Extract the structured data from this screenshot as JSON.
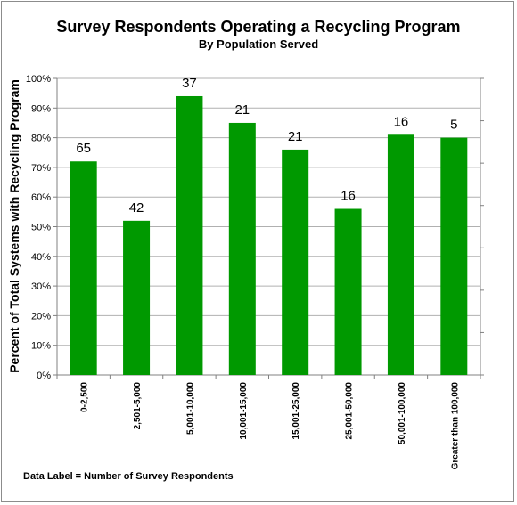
{
  "chart_data": {
    "type": "bar",
    "title": "Survey Respondents Operating a Recycling Program",
    "subtitle": "By Population Served",
    "ylabel": "Percent of Total Systems with Recycling Program",
    "xlabel": "",
    "categories": [
      "0-2,500",
      "2,501-5,000",
      "5,001-10,000",
      "10,001-15,000",
      "15,001-25,000",
      "25,001-50,000",
      "50,001-100,000",
      "Greater than 100,000"
    ],
    "values": [
      72,
      52,
      94,
      85,
      76,
      56,
      81,
      80
    ],
    "data_labels": [
      "65",
      "42",
      "37",
      "21",
      "21",
      "16",
      "16",
      "5"
    ],
    "yticks": [
      "0%",
      "10%",
      "20%",
      "30%",
      "40%",
      "50%",
      "60%",
      "70%",
      "80%",
      "90%",
      "100%"
    ],
    "ylim": [
      0,
      100
    ],
    "bar_color": "#009900",
    "grid": true,
    "footnote": "Data Label = Number of Survey Respondents"
  }
}
